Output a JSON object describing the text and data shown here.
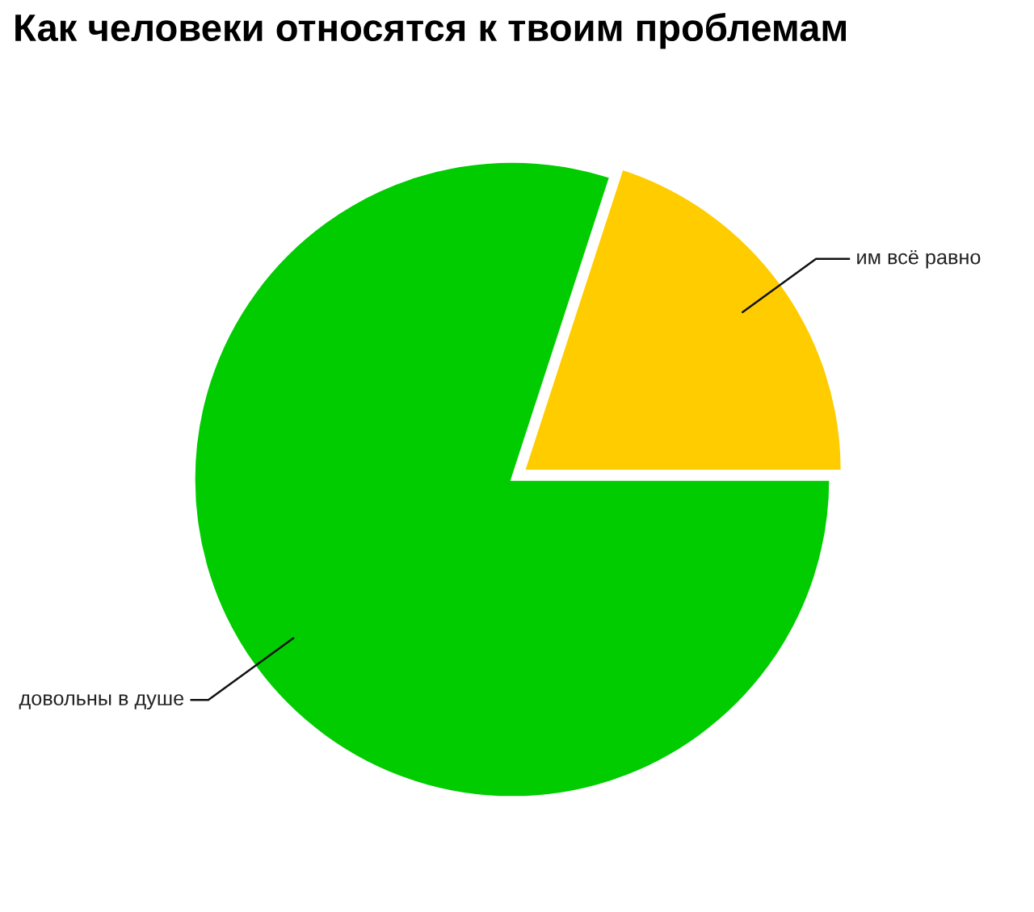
{
  "chart_data": {
    "type": "pie",
    "title": "Как человеки относятся к твоим проблемам",
    "categories": [
      "им всё равно",
      "довольны в душе"
    ],
    "values": [
      20,
      80
    ],
    "colors": [
      "#ffcc00",
      "#00cc00"
    ]
  }
}
